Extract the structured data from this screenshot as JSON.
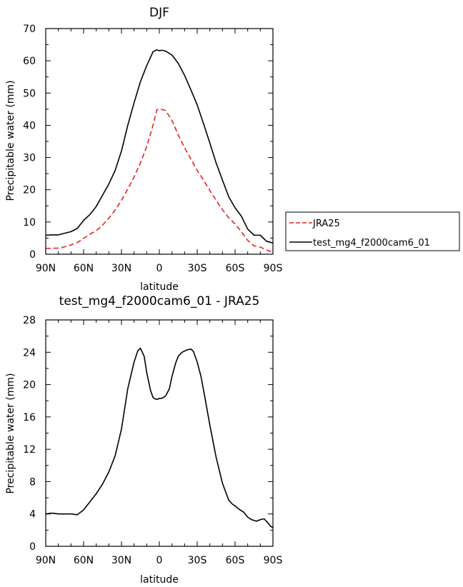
{
  "chart_data": [
    {
      "type": "line",
      "title": "DJF",
      "xlabel": "latitude",
      "ylabel": "Precipitable water (mm)",
      "xlim": [
        -90,
        90
      ],
      "ylim": [
        0,
        70
      ],
      "x_ticks": [
        "90N",
        "60N",
        "30N",
        "0",
        "30S",
        "60S",
        "90S"
      ],
      "y_ticks": [
        "0",
        "10",
        "20",
        "30",
        "40",
        "50",
        "60",
        "70"
      ],
      "legend": "right",
      "series": [
        {
          "name": "JRA25",
          "color": "#e8201e",
          "style": "dashed",
          "x": [
            -90,
            -80,
            -75,
            -70,
            -65,
            -60,
            -55,
            -50,
            -45,
            -40,
            -35,
            -30,
            -25,
            -20,
            -15,
            -10,
            -5,
            -2,
            0,
            2,
            5,
            10,
            15,
            20,
            25,
            30,
            35,
            40,
            45,
            50,
            55,
            60,
            65,
            70,
            75,
            80,
            85,
            90
          ],
          "y": [
            1.8,
            1.9,
            2.3,
            2.9,
            3.6,
            4.9,
            6.2,
            7.3,
            9.0,
            11.2,
            13.7,
            16.7,
            20.2,
            24.0,
            28.3,
            33.4,
            40.0,
            44.8,
            45.1,
            44.9,
            44.6,
            41.5,
            37.0,
            33.0,
            29.5,
            26.0,
            23.0,
            19.8,
            16.7,
            13.8,
            11.3,
            9.4,
            7.0,
            4.3,
            2.6,
            2.2,
            1.3,
            0.6
          ]
        },
        {
          "name": "test_mg4_f2000cam6_01",
          "color": "#000000",
          "style": "solid",
          "x": [
            -90,
            -85,
            -80,
            -75,
            -70,
            -65,
            -60,
            -55,
            -50,
            -45,
            -40,
            -35,
            -30,
            -25,
            -20,
            -15,
            -10,
            -5,
            -2,
            0,
            2,
            5,
            10,
            15,
            20,
            25,
            30,
            35,
            40,
            45,
            50,
            55,
            60,
            65,
            70,
            75,
            80,
            85,
            90
          ],
          "y": [
            5.9,
            6.0,
            6.0,
            6.5,
            7.0,
            8.0,
            10.5,
            12.3,
            14.8,
            18.3,
            21.8,
            26.0,
            32.0,
            40.0,
            47.0,
            53.5,
            58.5,
            62.8,
            63.4,
            63.1,
            63.3,
            63.0,
            61.8,
            59.2,
            55.5,
            51.0,
            46.3,
            40.5,
            34.5,
            28.3,
            23.0,
            17.8,
            14.4,
            11.8,
            7.8,
            5.9,
            5.9,
            4.0,
            3.5
          ]
        }
      ]
    },
    {
      "type": "line",
      "title": "test_mg4_f2000cam6_01 - JRA25",
      "xlabel": "latitude",
      "ylabel": "Precipitable water (mm)",
      "xlim": [
        -90,
        90
      ],
      "ylim": [
        0,
        28
      ],
      "x_ticks": [
        "90N",
        "60N",
        "30N",
        "0",
        "30S",
        "60S",
        "90S"
      ],
      "y_ticks": [
        "0",
        "4",
        "8",
        "12",
        "16",
        "20",
        "24",
        "28"
      ],
      "series": [
        {
          "color": "#000000",
          "style": "solid",
          "x": [
            -90,
            -85,
            -80,
            -75,
            -70,
            -65,
            -60,
            -55,
            -50,
            -45,
            -40,
            -35,
            -30,
            -25,
            -20,
            -17,
            -15,
            -12,
            -10,
            -7,
            -5,
            -3,
            -1,
            0,
            2,
            5,
            8,
            10,
            13,
            15,
            18,
            22,
            25,
            27,
            30,
            33,
            36,
            40,
            45,
            50,
            55,
            58,
            60,
            63,
            67,
            70,
            73,
            77,
            80,
            83,
            86,
            88,
            90
          ],
          "y": [
            4.0,
            4.1,
            4.0,
            4.0,
            4.0,
            3.9,
            4.5,
            5.5,
            6.5,
            7.7,
            9.2,
            11.2,
            14.5,
            19.5,
            22.8,
            24.2,
            24.5,
            23.5,
            21.5,
            19.3,
            18.4,
            18.2,
            18.2,
            18.3,
            18.3,
            18.6,
            19.5,
            21.0,
            22.7,
            23.5,
            24.0,
            24.3,
            24.4,
            24.1,
            22.8,
            21.0,
            18.5,
            15.0,
            11.0,
            7.8,
            5.7,
            5.2,
            5.0,
            4.6,
            4.2,
            3.6,
            3.3,
            3.1,
            3.3,
            3.4,
            2.9,
            2.5,
            2.3
          ]
        }
      ]
    }
  ]
}
